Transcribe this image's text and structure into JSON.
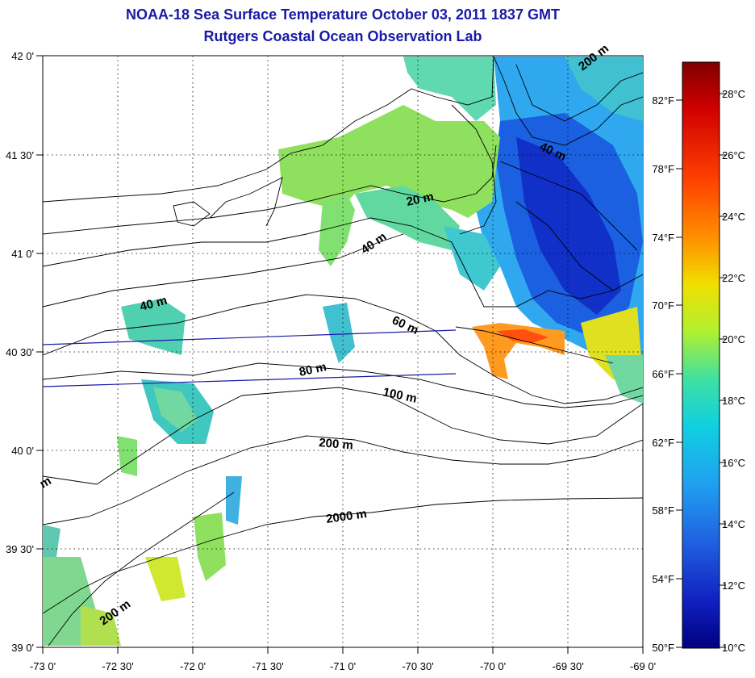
{
  "title": "NOAA-18 Sea Surface Temperature October 03, 2011 1837 GMT",
  "subtitle": "Rutgers Coastal Ocean Observation Lab",
  "lat_ticks": [
    "42 0'",
    "41 30'",
    "41 0'",
    "40 30'",
    "40 0'",
    "39 30'",
    "39 0'"
  ],
  "lon_ticks": [
    "-73 0'",
    "-72 30'",
    "-72 0'",
    "-71 30'",
    "-71 0'",
    "-70 30'",
    "-70 0'",
    "-69 30'",
    "-69 0'"
  ],
  "colorbar": {
    "celsius": [
      "28°C",
      "26°C",
      "24°C",
      "22°C",
      "20°C",
      "18°C",
      "16°C",
      "14°C",
      "12°C",
      "10°C"
    ],
    "fahrenheit": [
      "82°F",
      "78°F",
      "74°F",
      "70°F",
      "66°F",
      "62°F",
      "58°F",
      "54°F",
      "50°F"
    ],
    "colors": [
      "#800000",
      "#d00000",
      "#ff3000",
      "#ff8000",
      "#ffc000",
      "#f0f000",
      "#a0f040",
      "#40e0a0",
      "#10d0e0",
      "#20a0f0",
      "#2060e0",
      "#1020c0",
      "#000080"
    ]
  },
  "contour_labels": [
    "200 m",
    "40 m",
    "20 m",
    "40 m",
    "40 m",
    "60 m",
    "80 m",
    "100 m",
    "200 m",
    "2000 m",
    "200 m",
    "m"
  ]
}
